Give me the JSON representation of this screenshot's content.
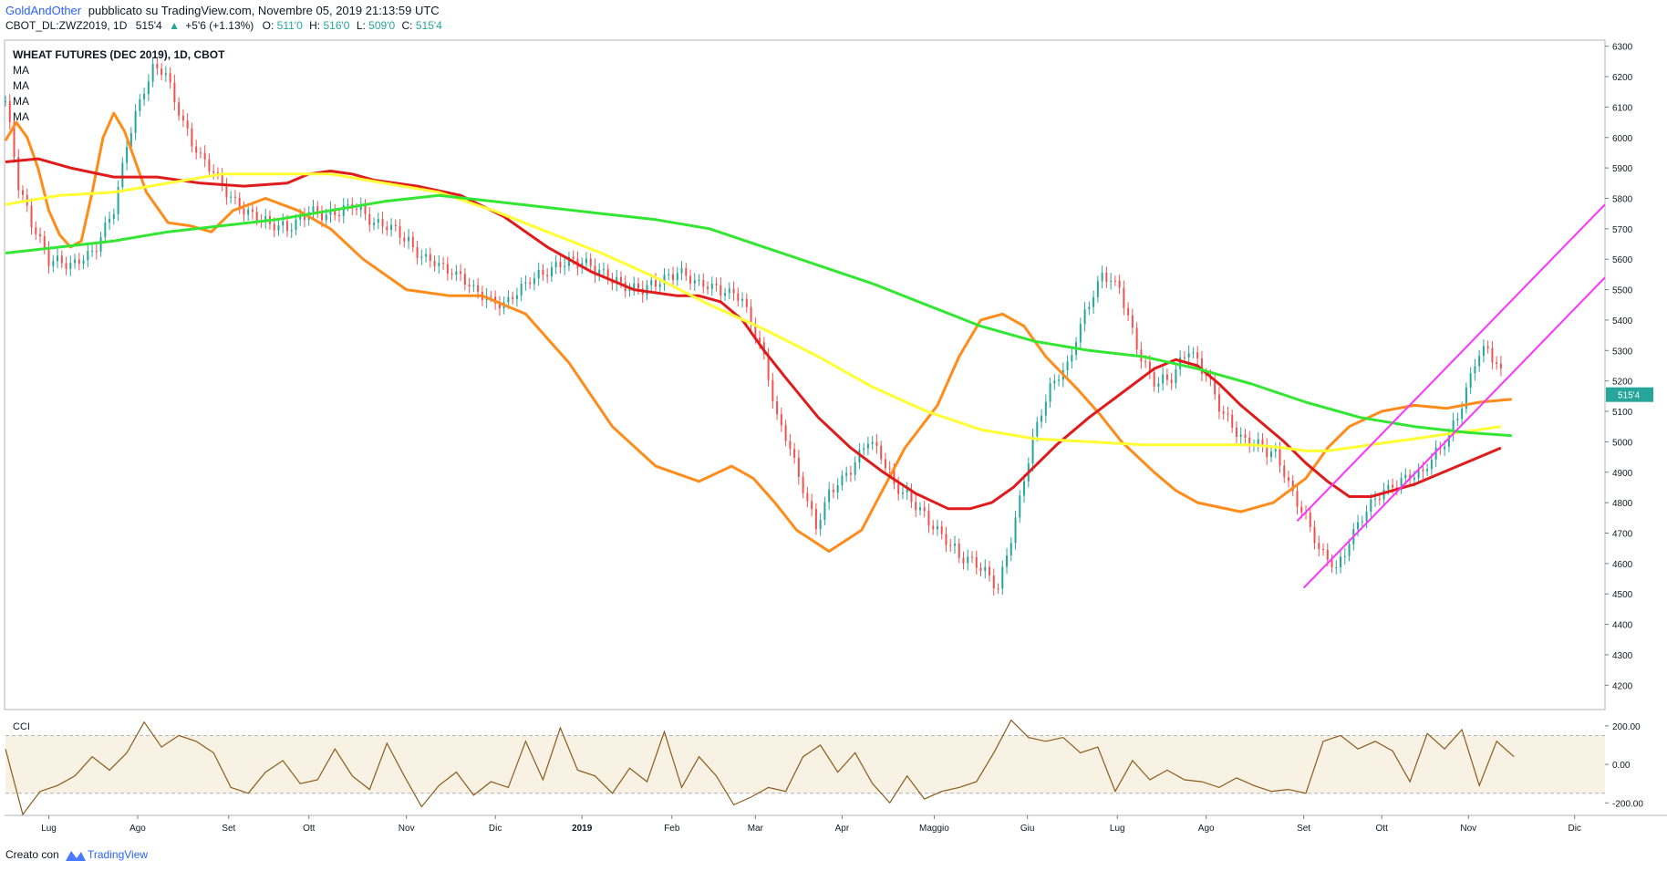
{
  "header": {
    "author": "GoldAndOther",
    "published": "pubblicato su TradingView.com, Novembre 05, 2019 21:13:59 UTC",
    "symbol": "CBOT_DL:ZWZ2019, 1D",
    "last": "515'4",
    "change": "+5'6 (+1.13%)",
    "o_label": "O:",
    "o_value": "511'0",
    "h_label": "H:",
    "h_value": "516'0",
    "l_label": "L:",
    "l_value": "509'0",
    "c_label": "C:",
    "c_value": "515'4"
  },
  "legend": {
    "title": "WHEAT FUTURES (DEC 2019), 1D, CBOT",
    "ma_labels": [
      "MA",
      "MA",
      "MA",
      "MA"
    ]
  },
  "cci_panel": {
    "label": "CCI"
  },
  "footer": {
    "created_with": "Creato con",
    "brand": "TradingView"
  },
  "colors": {
    "up": "#26a69a",
    "down": "#ef5350",
    "ma_fast": "#ff8c1a",
    "ma_red": "#e01b1b",
    "ma_yellow": "#ffff33",
    "ma_green": "#33e633",
    "channel": "#ff33ff",
    "cci_line": "#8b5a1a",
    "cci_band": "#f8f2e4",
    "price_badge": "#26a69a",
    "up_text": "#26a69a",
    "author_text": "#2962ff"
  },
  "chart_data": {
    "type": "line",
    "title": "WHEAT FUTURES (DEC 2019), 1D, CBOT",
    "price_axis": {
      "ylim": [
        4120,
        6320
      ],
      "ticks": [
        "6300",
        "6200",
        "6100",
        "6000",
        "5900",
        "5800",
        "5700",
        "5600",
        "5500",
        "5400",
        "5300",
        "5200",
        "5100",
        "5000",
        "4900",
        "4800",
        "4700",
        "4600",
        "4500",
        "4400",
        "4300",
        "4200"
      ],
      "last_price_badge": "515'4",
      "last_price_value": 5155
    },
    "cci_axis": {
      "ylim": [
        -260,
        280
      ],
      "ticks": [
        "200.00",
        "0.00",
        "-200.00"
      ],
      "band": [
        -150,
        150
      ]
    },
    "time_axis": {
      "labels": [
        "Lug",
        "Ago",
        "Set",
        "Ott",
        "Nov",
        "Dic",
        "2019",
        "Feb",
        "Mar",
        "Apr",
        "Maggio",
        "Giu",
        "Lug",
        "Ago",
        "Set",
        "Ott",
        "Nov",
        "Dic"
      ],
      "label_days": [
        40,
        122,
        206,
        280,
        370,
        452,
        532,
        615,
        692,
        772,
        857,
        943,
        1026,
        1108,
        1198,
        1270,
        1350,
        1448
      ]
    },
    "day_range": [
      0,
      1476
    ],
    "series": [
      {
        "key": "ma_fast",
        "x": [
          0,
          10,
          20,
          30,
          40,
          50,
          60,
          70,
          80,
          90,
          100,
          110,
          130,
          150,
          170,
          190,
          210,
          240,
          270,
          300,
          330,
          370,
          410,
          440,
          480,
          520,
          560,
          600,
          640,
          670,
          690,
          710,
          730,
          760,
          790,
          830,
          860,
          880,
          900,
          920,
          940,
          960,
          990,
          1010,
          1030,
          1060,
          1080,
          1100,
          1140,
          1170,
          1200,
          1220,
          1240,
          1270,
          1300,
          1330,
          1360,
          1390
        ],
        "y": [
          5990,
          6050,
          6000,
          5900,
          5760,
          5680,
          5640,
          5660,
          5820,
          6000,
          6080,
          6020,
          5820,
          5720,
          5710,
          5690,
          5760,
          5800,
          5760,
          5700,
          5600,
          5500,
          5480,
          5480,
          5420,
          5260,
          5050,
          4920,
          4870,
          4920,
          4880,
          4800,
          4710,
          4640,
          4710,
          4980,
          5120,
          5280,
          5400,
          5420,
          5380,
          5280,
          5170,
          5090,
          5000,
          4900,
          4840,
          4800,
          4770,
          4800,
          4880,
          4980,
          5050,
          5100,
          5120,
          5110,
          5130,
          5140
        ]
      },
      {
        "key": "ma_red",
        "x": [
          0,
          30,
          60,
          100,
          140,
          180,
          220,
          260,
          280,
          300,
          320,
          340,
          380,
          420,
          460,
          500,
          540,
          580,
          620,
          640,
          660,
          680,
          700,
          720,
          750,
          780,
          810,
          840,
          870,
          890,
          910,
          930,
          950,
          970,
          1000,
          1030,
          1060,
          1080,
          1100,
          1120,
          1140,
          1160,
          1180,
          1200,
          1220,
          1240,
          1260,
          1280,
          1300,
          1320,
          1340,
          1360,
          1380
        ],
        "y": [
          5920,
          5930,
          5900,
          5870,
          5870,
          5850,
          5840,
          5850,
          5880,
          5890,
          5880,
          5860,
          5840,
          5810,
          5740,
          5640,
          5560,
          5500,
          5480,
          5480,
          5460,
          5400,
          5300,
          5210,
          5080,
          4980,
          4900,
          4830,
          4780,
          4780,
          4800,
          4850,
          4920,
          4990,
          5080,
          5160,
          5240,
          5270,
          5250,
          5190,
          5120,
          5060,
          5000,
          4930,
          4870,
          4820,
          4820,
          4840,
          4860,
          4890,
          4920,
          4950,
          4980
        ]
      },
      {
        "key": "ma_yellow",
        "x": [
          0,
          50,
          100,
          150,
          200,
          250,
          300,
          350,
          400,
          450,
          500,
          550,
          600,
          650,
          700,
          750,
          800,
          850,
          900,
          950,
          1000,
          1050,
          1100,
          1150,
          1180,
          1200,
          1220,
          1240,
          1260,
          1280,
          1300,
          1320,
          1340,
          1360,
          1380
        ],
        "y": [
          5780,
          5810,
          5820,
          5850,
          5880,
          5880,
          5880,
          5850,
          5820,
          5760,
          5690,
          5620,
          5540,
          5450,
          5370,
          5280,
          5180,
          5100,
          5040,
          5010,
          5000,
          4990,
          4990,
          4990,
          4980,
          4970,
          4970,
          4980,
          4990,
          5000,
          5010,
          5020,
          5030,
          5040,
          5050
        ]
      },
      {
        "key": "ma_green",
        "x": [
          0,
          50,
          100,
          150,
          200,
          250,
          300,
          350,
          400,
          450,
          500,
          550,
          600,
          650,
          700,
          750,
          800,
          850,
          900,
          950,
          1000,
          1050,
          1100,
          1150,
          1200,
          1250,
          1300,
          1350,
          1390
        ],
        "y": [
          5620,
          5640,
          5660,
          5690,
          5710,
          5730,
          5760,
          5790,
          5810,
          5790,
          5770,
          5750,
          5730,
          5700,
          5640,
          5580,
          5520,
          5450,
          5380,
          5330,
          5300,
          5280,
          5240,
          5190,
          5130,
          5080,
          5050,
          5030,
          5020
        ]
      }
    ],
    "channel_lines": [
      {
        "from": [
          1198,
          4520
        ],
        "to": [
          1476,
          5540
        ]
      },
      {
        "from": [
          1192,
          4740
        ],
        "to": [
          1476,
          5780
        ]
      }
    ],
    "candles": {
      "start_day": 0,
      "day_step": 4,
      "waypoint_days": [
        0,
        12,
        24,
        40,
        60,
        80,
        100,
        112,
        124,
        136,
        148,
        160,
        172,
        184,
        196,
        208,
        220,
        240,
        260,
        280,
        300,
        320,
        340,
        360,
        380,
        400,
        420,
        440,
        460,
        480,
        500,
        520,
        540,
        560,
        580,
        600,
        620,
        640,
        660,
        680,
        700,
        712,
        724,
        736,
        748,
        760,
        772,
        784,
        796,
        808,
        820,
        832,
        844,
        856,
        868,
        880,
        892,
        904,
        916,
        928,
        940,
        952,
        964,
        980,
        996,
        1012,
        1028,
        1044,
        1060,
        1076,
        1092,
        1108,
        1124,
        1140,
        1156,
        1172,
        1188,
        1200,
        1212,
        1228,
        1244,
        1260,
        1276,
        1292,
        1308,
        1320,
        1332,
        1344,
        1356,
        1368,
        1380
      ],
      "waypoint_closes": [
        6120,
        5850,
        5720,
        5600,
        5580,
        5620,
        5760,
        5980,
        6120,
        6230,
        6210,
        6080,
        5980,
        5920,
        5870,
        5800,
        5760,
        5720,
        5700,
        5760,
        5740,
        5780,
        5720,
        5700,
        5620,
        5580,
        5540,
        5480,
        5450,
        5520,
        5560,
        5600,
        5580,
        5530,
        5500,
        5520,
        5560,
        5520,
        5500,
        5470,
        5280,
        5080,
        4980,
        4840,
        4720,
        4830,
        4880,
        4930,
        5010,
        4950,
        4860,
        4820,
        4780,
        4720,
        4680,
        4620,
        4610,
        4570,
        4520,
        4680,
        4880,
        5060,
        5180,
        5250,
        5420,
        5550,
        5510,
        5310,
        5190,
        5210,
        5310,
        5220,
        5090,
        5010,
        4990,
        4960,
        4830,
        4750,
        4650,
        4580,
        4700,
        4800,
        4850,
        4880,
        4900,
        4960,
        5020,
        5120,
        5270,
        5310,
        5220,
        5155
      ],
      "vol_pattern": [
        0.6,
        1.1,
        0.8,
        1.4,
        0.5,
        0.9,
        1.2,
        0.7,
        1.0,
        0.6,
        1.3,
        0.8,
        1.1,
        0.5,
        0.9,
        1.2,
        0.7,
        1.0
      ]
    },
    "cci_series": {
      "x": [
        0,
        16,
        32,
        48,
        64,
        80,
        96,
        112,
        128,
        144,
        160,
        176,
        192,
        208,
        224,
        240,
        256,
        272,
        288,
        304,
        320,
        336,
        352,
        368,
        384,
        400,
        416,
        432,
        448,
        464,
        480,
        496,
        512,
        528,
        544,
        560,
        576,
        592,
        608,
        624,
        640,
        656,
        672,
        688,
        704,
        720,
        736,
        752,
        768,
        784,
        800,
        816,
        832,
        848,
        864,
        880,
        896,
        912,
        928,
        944,
        960,
        976,
        992,
        1008,
        1024,
        1040,
        1056,
        1072,
        1088,
        1104,
        1120,
        1136,
        1152,
        1168,
        1184,
        1200,
        1216,
        1232,
        1248,
        1264,
        1280,
        1296,
        1312,
        1328,
        1344,
        1360,
        1376,
        1392
      ],
      "y": [
        80,
        -260,
        -140,
        -110,
        -60,
        40,
        -30,
        60,
        220,
        90,
        150,
        120,
        60,
        -120,
        -150,
        -40,
        20,
        -100,
        -80,
        80,
        -60,
        -130,
        110,
        -60,
        -220,
        -110,
        -40,
        -160,
        -90,
        -120,
        120,
        -80,
        190,
        -30,
        -60,
        -150,
        -20,
        -90,
        170,
        -120,
        40,
        -60,
        -210,
        -170,
        -120,
        -140,
        40,
        100,
        -40,
        60,
        -100,
        -200,
        -60,
        -180,
        -140,
        -120,
        -90,
        60,
        230,
        140,
        120,
        140,
        60,
        90,
        -140,
        20,
        -80,
        -30,
        -80,
        -90,
        -120,
        -70,
        -110,
        -140,
        -130,
        -150,
        120,
        150,
        80,
        120,
        70,
        -90,
        160,
        80,
        180,
        -110,
        120,
        40
      ],
      "last_value": 40
    }
  }
}
